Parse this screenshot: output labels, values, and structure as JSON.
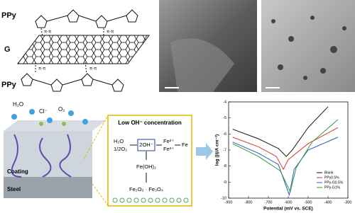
{
  "structure": {
    "top_label": "PPy",
    "middle_label": "G",
    "bottom_label": "PPy",
    "pi_labels": [
      "π-π",
      "π-π",
      "π-π",
      "π-π"
    ]
  },
  "scheme": {
    "h2o": "H₂O",
    "cl": "Cl⁻",
    "o2": "O₂",
    "coating": "Coating",
    "steel": "Steel",
    "box_title": "Low OH⁻ concentration",
    "reactant_1": "H₂O",
    "reactant_2": "1/2O₂",
    "hydroxide": "2OH⁻",
    "ion_1": "Fe²⁺",
    "ion_2": "Fe³⁺",
    "metal": "Fe",
    "hydroxide_product": "Fe(OH)₂",
    "oxides": "Fe₂O₃ · Fe₃O₄"
  },
  "chart_data": {
    "type": "line",
    "x_label": "Potential (mV vs. SCE)",
    "y_label": "log (|i|/A cm⁻²)",
    "xlim": [
      -900,
      -300
    ],
    "xticks": [
      -900,
      -800,
      -700,
      -600,
      -500,
      -400,
      -300
    ],
    "ylim": [
      -10,
      -4
    ],
    "yticks": [
      -4,
      -5,
      -6,
      -7,
      -8,
      -9,
      -10
    ],
    "legend": "lower-right",
    "series": [
      {
        "name": "Blank",
        "color": "#111111",
        "x": [
          -880,
          -750,
          -650,
          -610,
          -580,
          -500,
          -400
        ],
        "values": [
          -5.7,
          -6.3,
          -6.9,
          -7.4,
          -7.0,
          -5.6,
          -4.3
        ]
      },
      {
        "name": "PPy0.5%",
        "color": "#d23a2a",
        "x": [
          -880,
          -750,
          -660,
          -625,
          -600,
          -500,
          -350
        ],
        "values": [
          -6.2,
          -6.8,
          -7.4,
          -8.2,
          -7.6,
          -6.6,
          -5.6
        ]
      },
      {
        "name": "PPy-G0.5%",
        "color": "#2a5fc4",
        "x": [
          -880,
          -750,
          -650,
          -595,
          -570,
          -500,
          -350
        ],
        "values": [
          -6.5,
          -7.2,
          -7.9,
          -9.8,
          -8.2,
          -7.0,
          -6.2
        ]
      },
      {
        "name": "PPy-G1%",
        "color": "#2f9a3a",
        "x": [
          -880,
          -750,
          -640,
          -590,
          -560,
          -480,
          -350
        ],
        "values": [
          -6.6,
          -7.4,
          -8.3,
          -9.6,
          -8.1,
          -6.5,
          -5.1
        ]
      }
    ]
  }
}
